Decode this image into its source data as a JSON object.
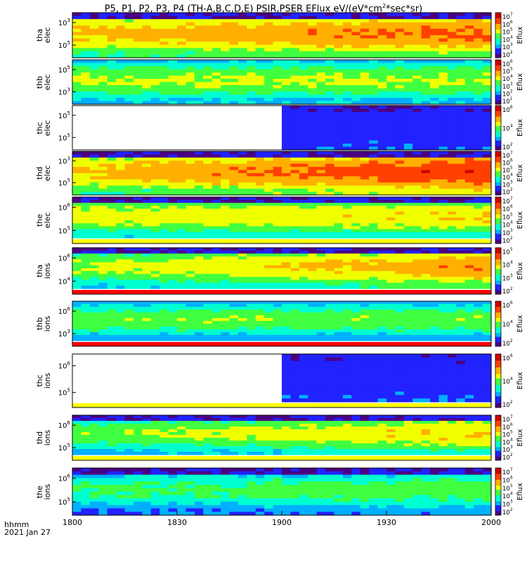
{
  "title_parts": {
    "main": "P5, P1, P2, P3, P4 (TH-A,B,C,D,E) PSIR,PSER EFlux eV/(eV*cm",
    "sup": "2",
    "tail": "*sec*sr)"
  },
  "corner": {
    "line1": "hhmm",
    "line2": "2021 Jan 27"
  },
  "colors": {
    "map": [
      "#4b0082",
      "#2222ff",
      "#00b0ff",
      "#00ffd0",
      "#40ff40",
      "#f0ff00",
      "#ffb000",
      "#ff4000",
      "#d00000"
    ]
  },
  "chart_data": {
    "type": "heatmap",
    "xlim": [
      "1800",
      "2000"
    ],
    "x_ticks": [
      "1800",
      "1830",
      "1900",
      "1930",
      "2000"
    ],
    "colorbar_label": "Eflux",
    "panels": [
      {
        "id": "tha-elec",
        "ylabel": [
          "tha",
          "elec"
        ],
        "y_ticks": [
          "10^3",
          "10^5"
        ],
        "cbar_ticks": [
          "10^7",
          "10^6",
          "10^5",
          "10^4",
          "10^3",
          "10^2"
        ],
        "base_level": 0.62,
        "trend": 0.12,
        "noise_top": true,
        "empty_until": null,
        "bottom_band": null
      },
      {
        "id": "thb-elec",
        "ylabel": [
          "thb",
          "elec"
        ],
        "y_ticks": [
          "10^5",
          "10^3"
        ],
        "cbar_ticks": [
          "10^6",
          "10^5",
          "10^4",
          "10^3",
          "10^2",
          "10^1"
        ],
        "base_level": 0.45,
        "trend": 0.0,
        "noise_top": false,
        "empty_until": null,
        "bottom_band": null
      },
      {
        "id": "thc-elec",
        "ylabel": [
          "thc",
          "elec"
        ],
        "y_ticks": [
          "10^5",
          "10^5"
        ],
        "cbar_ticks": [
          "10^6",
          "10^4",
          "10^2"
        ],
        "base_level": 0.25,
        "trend": 0.0,
        "noise_top": false,
        "empty_until": "1900",
        "bottom_band": null
      },
      {
        "id": "thd-elec",
        "ylabel": [
          "thd",
          "elec"
        ],
        "y_ticks": [
          "10^3",
          "10^5"
        ],
        "cbar_ticks": [
          "10^7",
          "10^6",
          "10^5",
          "10^4",
          "10^3",
          "10^2"
        ],
        "base_level": 0.62,
        "trend": 0.2,
        "noise_top": true,
        "empty_until": null,
        "bottom_band": null
      },
      {
        "id": "the-elec",
        "ylabel": [
          "the",
          "elec"
        ],
        "y_ticks": [
          "10^6",
          "10^5"
        ],
        "cbar_ticks": [
          "10^7",
          "10^6",
          "10^5",
          "10^4",
          "10^3",
          "10^2"
        ],
        "base_level": 0.52,
        "trend": 0.05,
        "noise_top": true,
        "empty_until": null,
        "bottom_band": "yellow"
      },
      {
        "id": "tha-ions",
        "ylabel": [
          "tha",
          "ions"
        ],
        "y_ticks": [
          "10^6",
          "10^4"
        ],
        "cbar_ticks": [
          "10^5",
          "10^4",
          "10^3",
          "10^2"
        ],
        "base_level": 0.45,
        "trend": 0.2,
        "noise_top": true,
        "empty_until": null,
        "bottom_band": "red"
      },
      {
        "id": "thb-ions",
        "ylabel": [
          "thb",
          "ions"
        ],
        "y_ticks": [
          "10^6",
          "10^3"
        ],
        "cbar_ticks": [
          "10^6",
          "10^4",
          "10^2"
        ],
        "base_level": 0.4,
        "trend": 0.0,
        "noise_top": false,
        "empty_until": null,
        "bottom_band": "red"
      },
      {
        "id": "thc-ions",
        "ylabel": [
          "thc",
          "ions"
        ],
        "y_ticks": [
          "10^6",
          "10^5"
        ],
        "cbar_ticks": [
          "10^6",
          "10^4",
          "10^2"
        ],
        "base_level": 0.25,
        "trend": 0.0,
        "noise_top": false,
        "empty_until": "1900",
        "bottom_band": "yellow"
      },
      {
        "id": "thd-ions",
        "ylabel": [
          "thd",
          "ions"
        ],
        "y_ticks": [
          "10^6",
          "10^5"
        ],
        "cbar_ticks": [
          "10^7",
          "10^6",
          "10^5",
          "10^4",
          "10^3",
          "10^2"
        ],
        "base_level": 0.4,
        "trend": 0.15,
        "noise_top": true,
        "empty_until": null,
        "bottom_band": "yellow"
      },
      {
        "id": "the-ions",
        "ylabel": [
          "the",
          "ions"
        ],
        "y_ticks": [
          "10^6",
          "10^5"
        ],
        "cbar_ticks": [
          "10^7",
          "10^6",
          "10^5",
          "10^4",
          "10^3",
          "10^2"
        ],
        "base_level": 0.3,
        "trend": 0.05,
        "noise_top": true,
        "empty_until": null,
        "bottom_band": null
      }
    ]
  }
}
